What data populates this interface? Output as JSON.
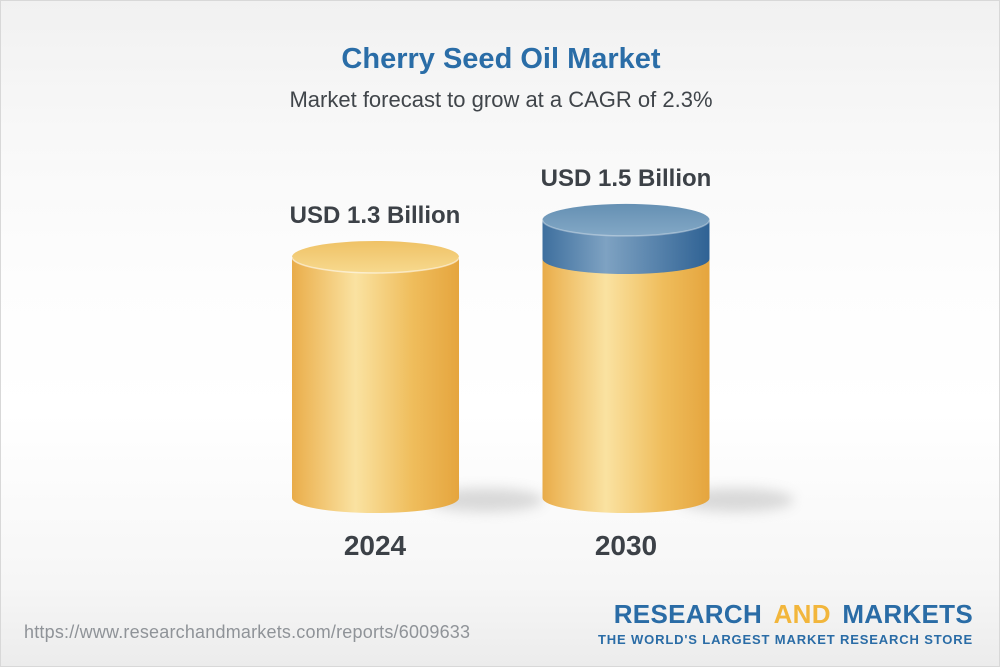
{
  "chart_data": {
    "type": "bar",
    "subtype": "3d-cylinder-infographic",
    "title": "Cherry Seed Oil Market",
    "subtitle": "Market forecast to grow at a CAGR of 2.3%",
    "cagr_percent": 2.3,
    "categories": [
      "2024",
      "2030"
    ],
    "values": [
      1.3,
      1.5
    ],
    "unit": "USD Billion",
    "data_labels": [
      "USD 1.3 Billion",
      "USD 1.5 Billion"
    ],
    "ylim": [
      0,
      1.5
    ],
    "grid": false,
    "legend": false,
    "bar_base_color": "#F2C567",
    "growth_cap_color": "#5585B0",
    "annotation": "Blue cap on 2030 cylinder depicts forecast growth above the 2024 level"
  },
  "footer": {
    "url": "https://www.researchandmarkets.com/reports/6009633",
    "logo": {
      "word1": "RESEARCH",
      "word2": "AND",
      "word3": "MARKETS",
      "tagline": "THE WORLD'S LARGEST MARKET RESEARCH STORE"
    }
  },
  "colors": {
    "title_blue": "#2A6DA7",
    "text_dark": "#3C4147",
    "url_gray": "#8F9398",
    "logo_blue": "#2A6CA6",
    "logo_gold": "#F2B63C",
    "cylinder_yellow_edge": "#E6A63F",
    "cylinder_yellow_highlight": "#FAE2A1",
    "cylinder_blue_edge": "#2F6294",
    "cylinder_blue_highlight": "#7EA2C2",
    "background_top": "#F1F1F1",
    "border": "#D8D8D8"
  }
}
